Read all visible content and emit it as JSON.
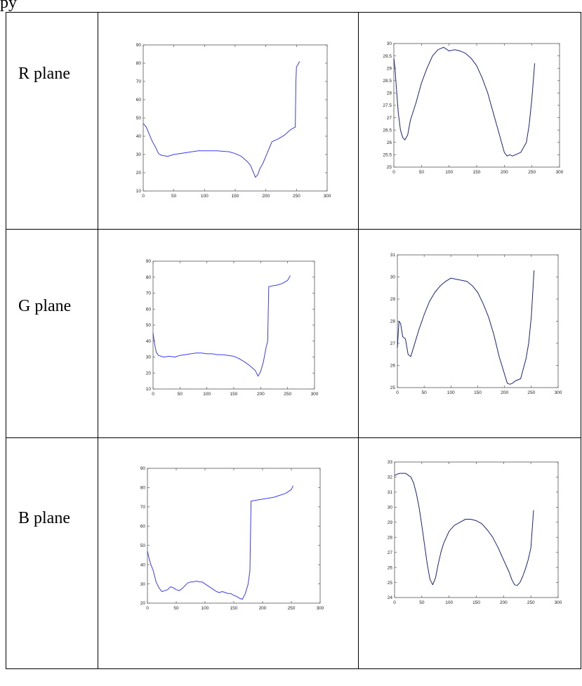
{
  "page": {
    "top_text": "py"
  },
  "rows": [
    {
      "label": "R plane"
    },
    {
      "label": "G plane"
    },
    {
      "label": "B plane"
    }
  ],
  "chart_data": [
    {
      "id": "r-left",
      "type": "line",
      "title": "",
      "xlabel": "",
      "ylabel": "",
      "xlim": [
        0,
        300
      ],
      "ylim": [
        10,
        90
      ],
      "xticks": [
        0,
        50,
        100,
        150,
        200,
        250,
        300
      ],
      "yticks": [
        10,
        20,
        30,
        40,
        50,
        60,
        70,
        80,
        90
      ],
      "color": "#3b3bff",
      "series": [
        {
          "x": [
            0,
            5,
            10,
            15,
            20,
            25,
            30,
            40,
            50,
            70,
            90,
            100,
            120,
            140,
            150,
            160,
            170,
            175,
            180,
            183,
            187,
            190,
            195,
            200,
            205,
            210,
            220,
            230,
            240,
            245,
            248,
            249,
            250,
            252,
            255
          ],
          "y": [
            47,
            45,
            41,
            37,
            34,
            30.5,
            29.5,
            29,
            30,
            31,
            32,
            32,
            32,
            31.5,
            30.5,
            29,
            26,
            24,
            20,
            17.5,
            19,
            22,
            25,
            29,
            33,
            37,
            38.5,
            40.5,
            43.5,
            44.5,
            45,
            70,
            78,
            79,
            81
          ]
        }
      ]
    },
    {
      "id": "r-right",
      "type": "line",
      "title": "",
      "xlabel": "",
      "ylabel": "",
      "xlim": [
        0,
        300
      ],
      "ylim": [
        25,
        30
      ],
      "xticks": [
        0,
        50,
        100,
        150,
        200,
        250,
        300
      ],
      "yticks": [
        25,
        25.5,
        26,
        26.5,
        27,
        27.5,
        28,
        28.5,
        29,
        29.5,
        30
      ],
      "color": "#1a237e",
      "series": [
        {
          "x": [
            0,
            2,
            5,
            8,
            12,
            16,
            20,
            25,
            30,
            40,
            50,
            60,
            70,
            80,
            90,
            100,
            110,
            120,
            130,
            140,
            150,
            160,
            170,
            180,
            190,
            200,
            205,
            210,
            215,
            220,
            230,
            240,
            245,
            250,
            255
          ],
          "y": [
            29.4,
            29.0,
            28.1,
            27.2,
            26.5,
            26.2,
            26.1,
            26.3,
            26.9,
            27.6,
            28.4,
            29.0,
            29.5,
            29.75,
            29.85,
            29.7,
            29.75,
            29.7,
            29.6,
            29.4,
            29.1,
            28.6,
            28.0,
            27.2,
            26.4,
            25.6,
            25.45,
            25.5,
            25.45,
            25.5,
            25.6,
            26.0,
            26.7,
            27.8,
            29.2
          ]
        }
      ]
    },
    {
      "id": "g-left",
      "type": "line",
      "title": "",
      "xlabel": "",
      "ylabel": "",
      "xlim": [
        0,
        300
      ],
      "ylim": [
        10,
        90
      ],
      "xticks": [
        0,
        50,
        100,
        150,
        200,
        250,
        300
      ],
      "yticks": [
        10,
        20,
        30,
        40,
        50,
        60,
        70,
        80,
        90
      ],
      "color": "#3b3bff",
      "series": [
        {
          "x": [
            0,
            3,
            6,
            10,
            15,
            20,
            30,
            40,
            50,
            60,
            70,
            80,
            90,
            100,
            110,
            120,
            130,
            140,
            150,
            160,
            170,
            180,
            190,
            195,
            200,
            205,
            210,
            213,
            215,
            220,
            230,
            240,
            250,
            255
          ],
          "y": [
            45,
            38,
            33,
            31,
            30.5,
            30,
            30.5,
            30,
            31,
            31.5,
            32,
            32.5,
            32.5,
            32,
            32,
            31.5,
            31.5,
            31,
            30.5,
            29,
            27,
            24.5,
            21.5,
            18,
            21,
            27,
            36,
            40,
            74,
            74.5,
            75,
            76,
            78,
            81
          ]
        }
      ]
    },
    {
      "id": "g-right",
      "type": "line",
      "title": "",
      "xlabel": "",
      "ylabel": "",
      "xlim": [
        0,
        300
      ],
      "ylim": [
        25,
        31
      ],
      "xticks": [
        0,
        50,
        100,
        150,
        200,
        250,
        300
      ],
      "yticks": [
        25,
        26,
        27,
        28,
        29,
        30,
        31
      ],
      "color": "#1a237e",
      "series": [
        {
          "x": [
            0,
            3,
            6,
            10,
            15,
            20,
            25,
            30,
            40,
            50,
            60,
            70,
            80,
            90,
            100,
            110,
            120,
            130,
            140,
            150,
            160,
            170,
            180,
            190,
            200,
            205,
            210,
            215,
            220,
            230,
            240,
            245,
            250,
            255
          ],
          "y": [
            26.8,
            28.0,
            27.9,
            27.3,
            27.2,
            26.5,
            26.4,
            26.8,
            27.6,
            28.3,
            28.9,
            29.3,
            29.6,
            29.8,
            29.95,
            29.9,
            29.85,
            29.8,
            29.6,
            29.3,
            28.8,
            28.2,
            27.4,
            26.4,
            25.6,
            25.2,
            25.15,
            25.2,
            25.3,
            25.4,
            26.3,
            27.0,
            28.2,
            30.3
          ]
        }
      ]
    },
    {
      "id": "b-left",
      "type": "line",
      "title": "",
      "xlabel": "",
      "ylabel": "",
      "xlim": [
        0,
        300
      ],
      "ylim": [
        20,
        90
      ],
      "xticks": [
        0,
        50,
        100,
        150,
        200,
        250,
        300
      ],
      "yticks": [
        20,
        30,
        40,
        50,
        60,
        70,
        80,
        90
      ],
      "color": "#3b3bff",
      "series": [
        {
          "x": [
            0,
            3,
            6,
            10,
            15,
            20,
            25,
            30,
            35,
            40,
            45,
            50,
            55,
            60,
            65,
            70,
            75,
            80,
            85,
            90,
            95,
            100,
            105,
            110,
            115,
            120,
            125,
            130,
            135,
            140,
            145,
            150,
            155,
            160,
            165,
            170,
            175,
            178,
            180,
            190,
            200,
            210,
            220,
            230,
            240,
            245,
            250,
            253
          ],
          "y": [
            47,
            43,
            40,
            37,
            31,
            28,
            26,
            26.5,
            27,
            28.5,
            28,
            27,
            26.5,
            27.5,
            29,
            30.5,
            31,
            31,
            31.5,
            31,
            31,
            30,
            29,
            28,
            27,
            26,
            25.5,
            26,
            25.5,
            25,
            25,
            24,
            23.5,
            22.5,
            22,
            25,
            30,
            37,
            73,
            73.5,
            74,
            74.5,
            75,
            76,
            77,
            78,
            79,
            81
          ]
        }
      ]
    },
    {
      "id": "b-right",
      "type": "line",
      "title": "",
      "xlabel": "",
      "ylabel": "",
      "xlim": [
        0,
        300
      ],
      "ylim": [
        24,
        33
      ],
      "xticks": [
        0,
        50,
        100,
        150,
        200,
        250,
        300
      ],
      "yticks": [
        24,
        25,
        26,
        27,
        28,
        29,
        30,
        31,
        32,
        33
      ],
      "color": "#1a237e",
      "series": [
        {
          "x": [
            0,
            5,
            10,
            20,
            30,
            35,
            40,
            45,
            50,
            55,
            60,
            65,
            70,
            75,
            80,
            85,
            90,
            100,
            110,
            120,
            130,
            140,
            150,
            160,
            170,
            180,
            190,
            200,
            210,
            215,
            220,
            225,
            230,
            235,
            240,
            245,
            250,
            255
          ],
          "y": [
            32.1,
            32.2,
            32.25,
            32.25,
            32.0,
            31.6,
            30.9,
            30.0,
            28.8,
            27.5,
            26.2,
            25.2,
            24.85,
            25.3,
            26.2,
            27.0,
            27.6,
            28.4,
            28.8,
            29.0,
            29.2,
            29.2,
            29.1,
            28.9,
            28.5,
            28.0,
            27.3,
            26.5,
            25.7,
            25.2,
            24.85,
            24.8,
            25.0,
            25.4,
            25.9,
            26.5,
            27.3,
            29.8
          ]
        }
      ]
    }
  ]
}
